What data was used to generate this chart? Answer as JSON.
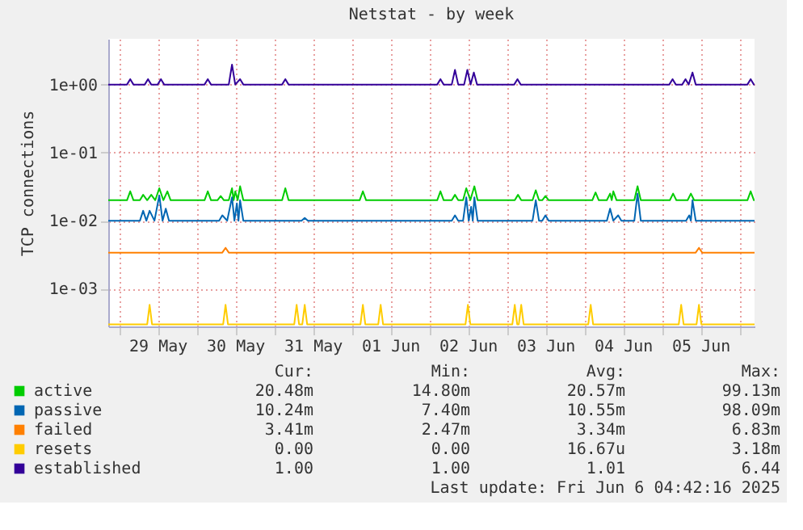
{
  "chart_data": {
    "type": "line",
    "title": "Netstat - by week",
    "ylabel": "TCP connections",
    "xlim": [
      "2025-05-28T20:42",
      "2025-06-06T04:42"
    ],
    "xticks": [
      {
        "value": "2025-05-29T00:00",
        "label": null
      },
      {
        "value": "2025-05-29T12:00",
        "label": "29 May"
      },
      {
        "value": "2025-05-30T00:00",
        "label": null
      },
      {
        "value": "2025-05-30T12:00",
        "label": "30 May"
      },
      {
        "value": "2025-05-31T00:00",
        "label": null
      },
      {
        "value": "2025-05-31T12:00",
        "label": "31 May"
      },
      {
        "value": "2025-06-01T00:00",
        "label": null
      },
      {
        "value": "2025-06-01T12:00",
        "label": "01 Jun"
      },
      {
        "value": "2025-06-02T00:00",
        "label": null
      },
      {
        "value": "2025-06-02T12:00",
        "label": "02 Jun"
      },
      {
        "value": "2025-06-03T00:00",
        "label": null
      },
      {
        "value": "2025-06-03T12:00",
        "label": "03 Jun"
      },
      {
        "value": "2025-06-04T00:00",
        "label": null
      },
      {
        "value": "2025-06-04T12:00",
        "label": "04 Jun"
      },
      {
        "value": "2025-06-05T00:00",
        "label": null
      },
      {
        "value": "2025-06-05T12:00",
        "label": "05 Jun"
      },
      {
        "value": "2025-06-06T00:00",
        "label": null
      }
    ],
    "ylim": [
      0.00028,
      4.7
    ],
    "log": true,
    "yticks": [
      {
        "value": 0.001,
        "label": "1e-03"
      },
      {
        "value": 0.01,
        "label": "1e-02"
      },
      {
        "value": 0.1,
        "label": "1e-01"
      },
      {
        "value": 1,
        "label": "1e+00"
      }
    ],
    "grid": true,
    "legend": "bottom",
    "series": [
      {
        "name": "active",
        "color": "#00cc00",
        "x": [
          "2025-05-28T20:42",
          "2025-05-29T02:30",
          "2025-05-29T03:30",
          "2025-05-29T04:30",
          "2025-05-29T06:30",
          "2025-05-29T07:30",
          "2025-05-29T08:45",
          "2025-05-29T10:00",
          "2025-05-29T11:15",
          "2025-05-29T12:30",
          "2025-05-29T13:45",
          "2025-05-29T15:00",
          "2025-05-29T16:00",
          "2025-05-30T02:30",
          "2025-05-30T03:30",
          "2025-05-30T04:30",
          "2025-05-30T06:30",
          "2025-05-30T07:30",
          "2025-05-30T08:30",
          "2025-05-30T10:00",
          "2025-05-30T11:00",
          "2025-05-30T11:30",
          "2025-05-30T12:00",
          "2025-05-30T12:45",
          "2025-05-30T13:30",
          "2025-05-30T14:30",
          "2025-05-31T02:30",
          "2025-05-31T03:30",
          "2025-05-31T04:30",
          "2025-06-01T02:30",
          "2025-06-01T03:30",
          "2025-06-01T04:30",
          "2025-06-02T02:30",
          "2025-06-02T03:30",
          "2025-06-02T04:30",
          "2025-06-02T07:00",
          "2025-06-02T08:00",
          "2025-06-02T09:00",
          "2025-06-02T10:30",
          "2025-06-02T11:30",
          "2025-06-02T12:45",
          "2025-06-02T14:00",
          "2025-06-02T15:00",
          "2025-06-03T02:30",
          "2025-06-03T03:30",
          "2025-06-03T04:30",
          "2025-06-03T08:00",
          "2025-06-03T09:00",
          "2025-06-03T10:00",
          "2025-06-03T11:00",
          "2025-06-03T12:00",
          "2025-06-03T13:00",
          "2025-06-04T02:30",
          "2025-06-04T03:30",
          "2025-06-04T04:30",
          "2025-06-04T07:00",
          "2025-06-04T08:00",
          "2025-06-04T08:30",
          "2025-06-04T09:00",
          "2025-06-04T10:00",
          "2025-06-04T15:30",
          "2025-06-04T16:30",
          "2025-06-04T17:30",
          "2025-06-05T02:30",
          "2025-06-05T03:30",
          "2025-06-05T04:30",
          "2025-06-05T08:00",
          "2025-06-05T09:00",
          "2025-06-05T10:00",
          "2025-06-06T02:30",
          "2025-06-06T03:30",
          "2025-06-06T04:30",
          "2025-06-06T04:42"
        ],
        "values": [
          0.02,
          0.02,
          0.027,
          0.02,
          0.02,
          0.024,
          0.02,
          0.024,
          0.02,
          0.03,
          0.02,
          0.027,
          0.02,
          0.02,
          0.027,
          0.02,
          0.02,
          0.023,
          0.02,
          0.02,
          0.03,
          0.02,
          0.027,
          0.02,
          0.032,
          0.02,
          0.02,
          0.03,
          0.02,
          0.02,
          0.027,
          0.02,
          0.02,
          0.027,
          0.02,
          0.02,
          0.024,
          0.02,
          0.02,
          0.03,
          0.02,
          0.032,
          0.02,
          0.02,
          0.024,
          0.02,
          0.02,
          0.028,
          0.02,
          0.02,
          0.023,
          0.02,
          0.02,
          0.026,
          0.02,
          0.02,
          0.025,
          0.02,
          0.027,
          0.02,
          0.02,
          0.032,
          0.02,
          0.02,
          0.025,
          0.02,
          0.02,
          0.025,
          0.02,
          0.02,
          0.027,
          0.02,
          0.02
        ]
      },
      {
        "name": "passive",
        "color": "#0066b3",
        "x": [
          "2025-05-28T20:42",
          "2025-05-29T06:30",
          "2025-05-29T07:30",
          "2025-05-29T08:30",
          "2025-05-29T09:30",
          "2025-05-29T11:00",
          "2025-05-29T12:30",
          "2025-05-29T13:30",
          "2025-05-29T14:30",
          "2025-05-29T15:30",
          "2025-05-30T07:00",
          "2025-05-30T08:00",
          "2025-05-30T09:30",
          "2025-05-30T11:00",
          "2025-05-30T11:45",
          "2025-05-30T12:30",
          "2025-05-30T13:00",
          "2025-05-30T13:30",
          "2025-05-30T14:30",
          "2025-05-31T08:30",
          "2025-05-31T09:30",
          "2025-05-31T10:30",
          "2025-06-02T07:00",
          "2025-06-02T08:00",
          "2025-06-02T09:00",
          "2025-06-02T10:30",
          "2025-06-02T11:30",
          "2025-06-02T12:15",
          "2025-06-02T13:00",
          "2025-06-02T13:30",
          "2025-06-02T14:00",
          "2025-06-02T15:00",
          "2025-06-03T08:00",
          "2025-06-03T09:00",
          "2025-06-03T10:00",
          "2025-06-03T11:00",
          "2025-06-03T12:00",
          "2025-06-03T13:00",
          "2025-06-04T07:00",
          "2025-06-04T08:00",
          "2025-06-04T09:00",
          "2025-06-04T10:30",
          "2025-06-04T11:30",
          "2025-06-04T15:30",
          "2025-06-04T16:30",
          "2025-06-04T17:30",
          "2025-06-05T07:30",
          "2025-06-05T08:30",
          "2025-06-05T09:00",
          "2025-06-05T09:30",
          "2025-06-05T10:30",
          "2025-06-06T04:42"
        ],
        "values": [
          0.01,
          0.01,
          0.014,
          0.01,
          0.014,
          0.01,
          0.0235,
          0.01,
          0.015,
          0.01,
          0.01,
          0.012,
          0.01,
          0.022,
          0.01,
          0.018,
          0.01,
          0.02,
          0.01,
          0.01,
          0.011,
          0.01,
          0.01,
          0.012,
          0.01,
          0.01,
          0.022,
          0.01,
          0.016,
          0.01,
          0.022,
          0.01,
          0.01,
          0.02,
          0.01,
          0.01,
          0.012,
          0.01,
          0.01,
          0.015,
          0.01,
          0.012,
          0.01,
          0.01,
          0.025,
          0.01,
          0.01,
          0.012,
          0.01,
          0.02,
          0.01,
          0.01
        ]
      },
      {
        "name": "failed",
        "color": "#ff8000",
        "x": [
          "2025-05-28T20:42",
          "2025-05-30T08:00",
          "2025-05-30T09:00",
          "2025-05-30T10:00",
          "2025-06-05T10:30",
          "2025-06-05T11:30",
          "2025-06-05T12:30",
          "2025-06-06T04:42"
        ],
        "values": [
          0.0034,
          0.0034,
          0.004,
          0.0034,
          0.0034,
          0.004,
          0.0034,
          0.0034
        ]
      },
      {
        "name": "resets",
        "color": "#ffcc00",
        "x": [
          "2025-05-28T20:42",
          "2025-05-29T08:45",
          "2025-05-29T09:30",
          "2025-05-29T10:15",
          "2025-05-30T08:15",
          "2025-05-30T09:00",
          "2025-05-30T09:45",
          "2025-05-31T06:15",
          "2025-05-31T07:00",
          "2025-05-31T07:45",
          "2025-05-31T08:45",
          "2025-05-31T09:30",
          "2025-05-31T10:15",
          "2025-06-01T02:45",
          "2025-06-01T03:30",
          "2025-06-01T04:15",
          "2025-06-01T08:15",
          "2025-06-01T09:00",
          "2025-06-01T09:45",
          "2025-06-02T11:15",
          "2025-06-02T12:00",
          "2025-06-02T12:45",
          "2025-06-03T01:45",
          "2025-06-03T02:30",
          "2025-06-03T03:15",
          "2025-06-03T03:45",
          "2025-06-03T04:30",
          "2025-06-03T05:15",
          "2025-06-04T01:15",
          "2025-06-04T02:00",
          "2025-06-04T02:45",
          "2025-06-05T05:15",
          "2025-06-05T06:00",
          "2025-06-05T06:45",
          "2025-06-05T10:45",
          "2025-06-05T11:30",
          "2025-06-05T12:15",
          "2025-06-06T04:42"
        ],
        "values": [
          0.0003,
          0.0003,
          0.00058,
          0.0003,
          0.0003,
          0.00058,
          0.0003,
          0.0003,
          0.00058,
          0.0003,
          0.0003,
          0.00058,
          0.0003,
          0.0003,
          0.00058,
          0.0003,
          0.0003,
          0.00058,
          0.0003,
          0.0003,
          0.00058,
          0.0003,
          0.0003,
          0.00058,
          0.0003,
          0.0003,
          0.00058,
          0.0003,
          0.0003,
          0.00058,
          0.0003,
          0.0003,
          0.00058,
          0.0003,
          0.0003,
          0.00058,
          0.0003,
          0.0003
        ]
      },
      {
        "name": "established",
        "color": "#330099",
        "x": [
          "2025-05-28T20:42",
          "2025-05-29T02:30",
          "2025-05-29T03:30",
          "2025-05-29T04:30",
          "2025-05-29T08:00",
          "2025-05-29T09:00",
          "2025-05-29T10:00",
          "2025-05-29T12:00",
          "2025-05-29T13:00",
          "2025-05-29T14:00",
          "2025-05-30T02:30",
          "2025-05-30T03:30",
          "2025-05-30T04:30",
          "2025-05-30T10:00",
          "2025-05-30T11:00",
          "2025-05-30T12:00",
          "2025-05-30T13:30",
          "2025-05-30T14:30",
          "2025-05-31T02:30",
          "2025-05-31T03:30",
          "2025-05-31T04:30",
          "2025-06-02T02:30",
          "2025-06-02T03:30",
          "2025-06-02T04:30",
          "2025-06-02T07:00",
          "2025-06-02T08:00",
          "2025-06-02T09:00",
          "2025-06-02T10:50",
          "2025-06-02T11:50",
          "2025-06-02T12:50",
          "2025-06-02T13:50",
          "2025-06-02T14:50",
          "2025-06-03T02:20",
          "2025-06-03T03:20",
          "2025-06-03T04:20",
          "2025-06-05T02:20",
          "2025-06-05T03:20",
          "2025-06-05T04:20",
          "2025-06-05T06:20",
          "2025-06-05T07:20",
          "2025-06-05T08:20",
          "2025-06-05T09:30",
          "2025-06-05T10:30",
          "2025-06-06T02:30",
          "2025-06-06T03:30",
          "2025-06-06T04:30",
          "2025-06-06T04:42"
        ],
        "values": [
          1,
          1,
          1.2,
          1,
          1,
          1.2,
          1,
          1,
          1.2,
          1,
          1,
          1.2,
          1,
          1,
          1.96,
          1,
          1.2,
          1,
          1,
          1.2,
          1,
          1,
          1.2,
          1,
          1,
          1.64,
          1,
          1,
          1.64,
          1,
          1.5,
          1,
          1,
          1.2,
          1,
          1,
          1.2,
          1,
          1,
          1.2,
          1,
          1.5,
          1,
          1,
          1.2,
          1,
          1
        ]
      }
    ],
    "annotations": [
      "Cur:",
      "Min:",
      "Avg:",
      "Max:",
      "20.48m",
      "14.80m",
      "20.57m",
      "99.13m",
      "10.24m",
      "7.40m",
      "10.55m",
      "98.09m",
      "3.41m",
      "2.47m",
      "3.34m",
      "6.83m",
      "0.00",
      "0.00",
      "16.67u",
      "3.18m",
      "1.00",
      "1.00",
      "1.01",
      "6.44",
      "Last update: Fri Jun  6 04:42:16 2025"
    ]
  }
}
